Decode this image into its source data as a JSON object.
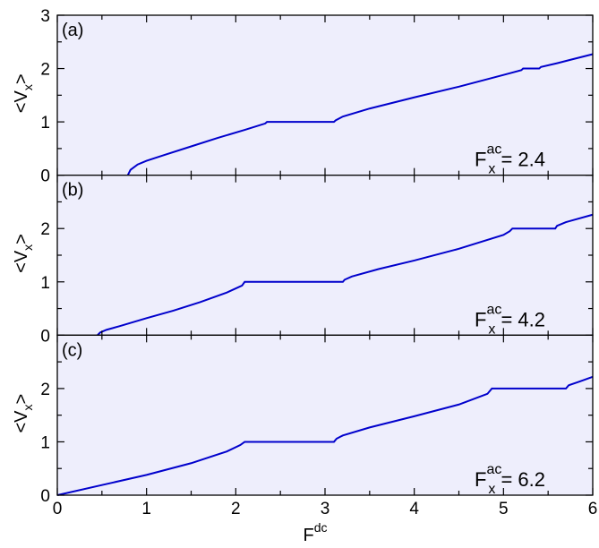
{
  "chart_data": [
    {
      "type": "line",
      "panel_label": "(a)",
      "annotation": {
        "base": "F",
        "sup": "ac",
        "sub": "x",
        "rest": " = 2.4"
      },
      "ylabel": {
        "base": "<V",
        "sub": "x",
        "rest": ">"
      },
      "xlim": [
        0,
        6
      ],
      "ylim": [
        0,
        3
      ],
      "yticks": [
        0,
        1,
        2,
        3
      ],
      "ytick_labels": [
        "0",
        "1",
        "2",
        "3"
      ],
      "background": "#eeeefc",
      "line_color": "#0000cc",
      "series": [
        {
          "x": [
            0.79,
            0.82,
            0.9,
            1.0,
            1.2,
            1.5,
            1.8,
            2.1,
            2.33,
            2.35,
            3.1,
            3.12,
            3.2,
            3.5,
            4.0,
            4.5,
            5.0,
            5.2,
            5.22,
            5.4,
            5.42,
            5.6,
            6.0
          ],
          "y": [
            0.0,
            0.1,
            0.2,
            0.27,
            0.38,
            0.54,
            0.7,
            0.85,
            0.97,
            1.0,
            1.0,
            1.03,
            1.1,
            1.25,
            1.46,
            1.66,
            1.88,
            1.97,
            2.0,
            2.0,
            2.03,
            2.1,
            2.27
          ]
        }
      ]
    },
    {
      "type": "line",
      "panel_label": "(b)",
      "annotation": {
        "base": "F",
        "sup": "ac",
        "sub": "x",
        "rest": " = 4.2"
      },
      "ylabel": {
        "base": "<V",
        "sub": "x",
        "rest": ">"
      },
      "xlim": [
        0,
        6
      ],
      "ylim": [
        0,
        3
      ],
      "yticks": [
        0,
        1,
        2
      ],
      "ytick_labels": [
        "0",
        "1",
        "2"
      ],
      "background": "#eeeefc",
      "line_color": "#0000cc",
      "series": [
        {
          "x": [
            0.45,
            0.48,
            0.55,
            0.7,
            1.0,
            1.3,
            1.6,
            1.9,
            2.07,
            2.1,
            3.2,
            3.22,
            3.3,
            3.6,
            4.0,
            4.5,
            5.0,
            5.07,
            5.1,
            5.58,
            5.6,
            5.7,
            6.0
          ],
          "y": [
            0.0,
            0.05,
            0.1,
            0.17,
            0.32,
            0.46,
            0.62,
            0.8,
            0.93,
            1.0,
            1.0,
            1.04,
            1.1,
            1.24,
            1.4,
            1.62,
            1.88,
            1.95,
            2.0,
            2.0,
            2.05,
            2.12,
            2.26
          ]
        }
      ]
    },
    {
      "type": "line",
      "panel_label": "(c)",
      "annotation": {
        "base": "F",
        "sup": "ac",
        "sub": "x",
        "rest": " = 6.2"
      },
      "ylabel": {
        "base": "<V",
        "sub": "x",
        "rest": ">"
      },
      "xlabel": {
        "base": "F",
        "sup": "dc"
      },
      "xlim": [
        0,
        6
      ],
      "ylim": [
        0,
        3
      ],
      "xticks": [
        0,
        1,
        2,
        3,
        4,
        5,
        6
      ],
      "xtick_labels": [
        "0",
        "1",
        "2",
        "3",
        "4",
        "5",
        "6"
      ],
      "yticks": [
        0,
        1,
        2
      ],
      "ytick_labels": [
        "0",
        "1",
        "2"
      ],
      "background": "#eeeefc",
      "line_color": "#0000cc",
      "series": [
        {
          "x": [
            0.0,
            0.5,
            1.0,
            1.5,
            1.9,
            2.05,
            2.1,
            3.1,
            3.13,
            3.2,
            3.5,
            4.0,
            4.5,
            4.82,
            4.87,
            5.7,
            5.73,
            5.85,
            6.0
          ],
          "y": [
            0.0,
            0.19,
            0.38,
            0.6,
            0.82,
            0.94,
            1.0,
            1.0,
            1.06,
            1.12,
            1.27,
            1.48,
            1.7,
            1.9,
            2.0,
            2.0,
            2.06,
            2.13,
            2.22
          ]
        }
      ]
    }
  ]
}
